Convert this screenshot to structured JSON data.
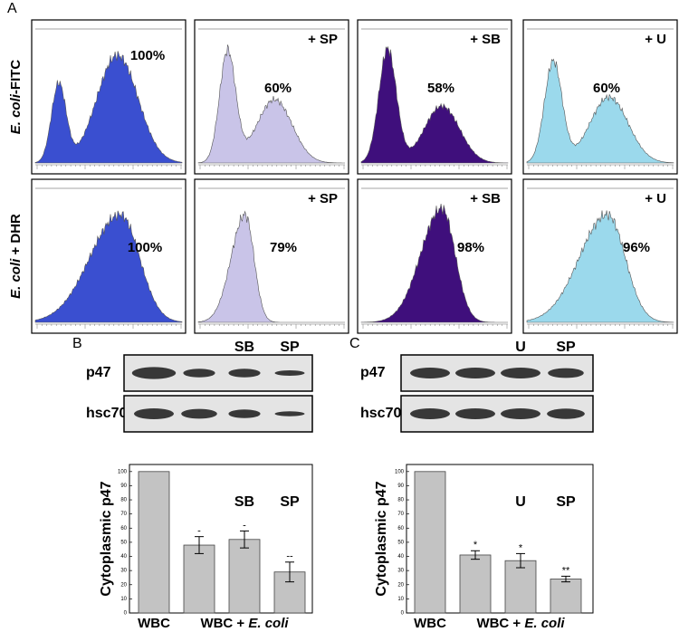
{
  "panel_labels": [
    "A",
    "B",
    "C"
  ],
  "flow": {
    "row_labels": [
      {
        "italic": "E. coli",
        "rest": "-FITC"
      },
      {
        "italic": "E. coli",
        "rest": " + DHR"
      }
    ],
    "colors": [
      "#3a4fd0",
      "#c9c4e8",
      "#3f0f7c",
      "#9bd9ec"
    ],
    "cells": [
      [
        {
          "percent": "100%"
        },
        {
          "treatment": "+ SP",
          "percent": "60%"
        },
        {
          "treatment": "+ SB",
          "percent": "58%"
        },
        {
          "treatment": "+ U",
          "percent": "60%"
        }
      ],
      [
        {
          "percent": "100%"
        },
        {
          "treatment": "+ SP",
          "percent": "79%"
        },
        {
          "treatment": "+ SB",
          "percent": "98%"
        },
        {
          "treatment": "+ U",
          "percent": "96%"
        }
      ]
    ]
  },
  "blots": [
    {
      "lane_labels": [
        null,
        null,
        "SB",
        "SP"
      ],
      "rows": [
        "p47",
        "hsc70"
      ]
    },
    {
      "lane_labels": [
        null,
        null,
        "U",
        "SP"
      ],
      "rows": [
        "p47",
        "hsc70"
      ]
    }
  ],
  "chart_data": [
    {
      "type": "bar",
      "y_label": "Cytoplasmic p47",
      "categories": [
        "WBC",
        null,
        null,
        null
      ],
      "group_label": {
        "plain": "WBC + ",
        "italic": "E. coli"
      },
      "values": [
        100,
        48,
        52,
        29
      ],
      "errors": [
        null,
        6,
        6,
        7
      ],
      "annotations": [
        null,
        null,
        "SB",
        "SP"
      ],
      "significance": [
        null,
        "-",
        "-",
        "--"
      ],
      "color": "#c3c3c3",
      "ylim": [
        0,
        105
      ],
      "yticks": [
        0,
        10,
        20,
        30,
        40,
        50,
        60,
        70,
        80,
        90,
        100
      ]
    },
    {
      "type": "bar",
      "y_label": "Cytoplasmic p47",
      "categories": [
        "WBC",
        null,
        null,
        null
      ],
      "group_label": {
        "plain": "WBC + ",
        "italic": "E. coli"
      },
      "values": [
        100,
        41,
        37,
        24
      ],
      "errors": [
        null,
        3,
        5,
        2
      ],
      "annotations": [
        null,
        null,
        "U",
        "SP"
      ],
      "significance": [
        null,
        "*",
        "*",
        "**"
      ],
      "color": "#c3c3c3",
      "ylim": [
        0,
        105
      ],
      "yticks": [
        0,
        10,
        20,
        30,
        40,
        50,
        60,
        70,
        80,
        90,
        100
      ]
    }
  ]
}
